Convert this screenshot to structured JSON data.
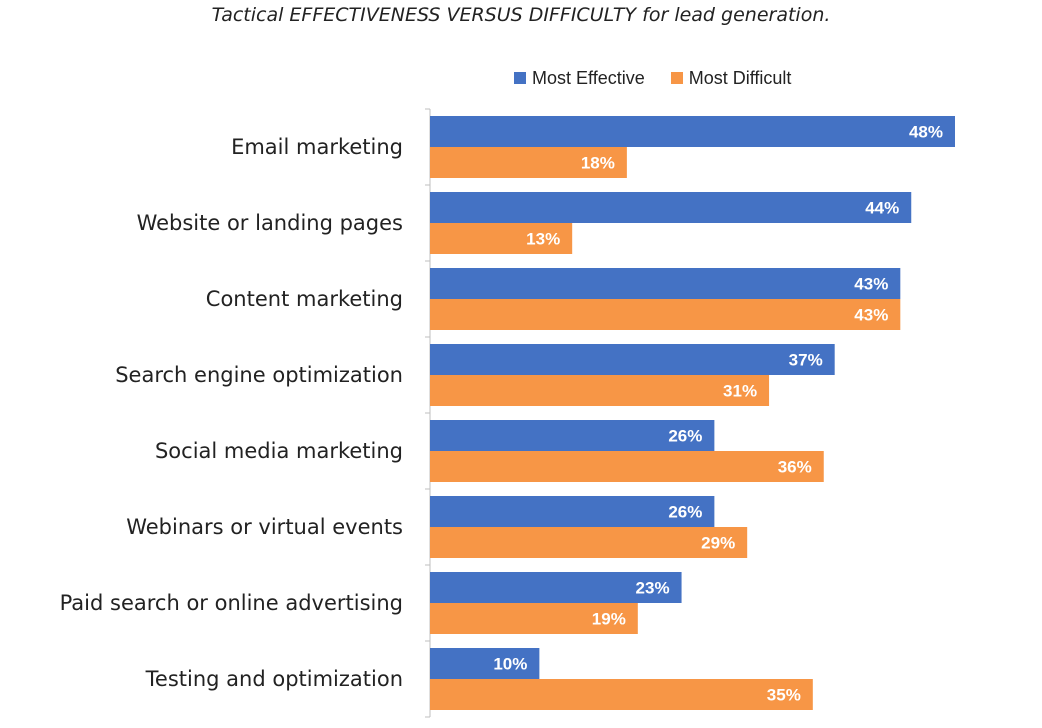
{
  "chart_data": {
    "type": "bar",
    "orientation": "horizontal",
    "title": "Tactical EFFECTIVENESS VERSUS DIFFICULTY for lead generation.",
    "categories": [
      "Email marketing",
      "Website or landing pages",
      "Content marketing",
      "Search engine optimization",
      "Social media marketing",
      "Webinars or virtual events",
      "Paid search or online advertising",
      "Testing and optimization"
    ],
    "series": [
      {
        "name": "Most Effective",
        "color": "#4472C4",
        "values": [
          48,
          44,
          43,
          37,
          26,
          26,
          23,
          10
        ],
        "labels": [
          "48%",
          "44%",
          "43%",
          "37%",
          "26%",
          "26%",
          "23%",
          "10%"
        ]
      },
      {
        "name": "Most Difficult",
        "color": "#F79646",
        "values": [
          18,
          13,
          43,
          31,
          36,
          29,
          19,
          35
        ],
        "labels": [
          "18%",
          "13%",
          "43%",
          "31%",
          "36%",
          "29%",
          "19%",
          "35%"
        ]
      }
    ],
    "xlim": [
      0,
      48
    ],
    "legend_position": "top",
    "grid": false
  }
}
